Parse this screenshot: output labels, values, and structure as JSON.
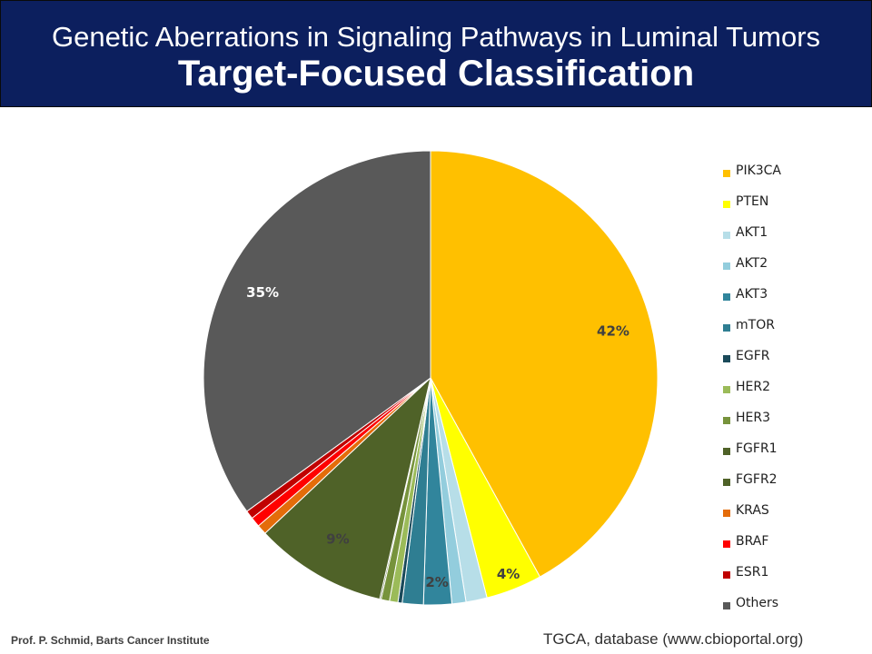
{
  "header": {
    "title": "Genetic Aberrations in Signaling Pathways in Luminal Tumors",
    "subtitle": "Target-Focused Classification"
  },
  "chart_data": {
    "type": "pie",
    "title": "",
    "start_angle_deg": 0,
    "direction": "clockwise",
    "slices": [
      {
        "label": "PIK3CA",
        "value": 42,
        "color": "#ffc000",
        "data_label": "42%"
      },
      {
        "label": "PTEN",
        "value": 4,
        "color": "#ffff00",
        "data_label": "4%"
      },
      {
        "label": "AKT1",
        "value": 1.5,
        "color": "#b7dee8",
        "data_label": ""
      },
      {
        "label": "AKT2",
        "value": 1,
        "color": "#93cddd",
        "data_label": ""
      },
      {
        "label": "AKT3",
        "value": 2,
        "color": "#31859c",
        "data_label": "2%"
      },
      {
        "label": "mTOR",
        "value": 1.5,
        "color": "#2f7e92",
        "data_label": ""
      },
      {
        "label": "EGFR",
        "value": 0.3,
        "color": "#1b4a5a",
        "data_label": ""
      },
      {
        "label": "HER2",
        "value": 0.6,
        "color": "#9bbb59",
        "data_label": ""
      },
      {
        "label": "HER3",
        "value": 0.6,
        "color": "#77933c",
        "data_label": ""
      },
      {
        "label": "FGFR1",
        "value": 0.1,
        "color": "#4f6228",
        "data_label": ""
      },
      {
        "label": "FGFR2",
        "value": 9.4,
        "color": "#4f6228",
        "data_label": "9%"
      },
      {
        "label": "KRAS",
        "value": 0.7,
        "color": "#e46c0a",
        "data_label": ""
      },
      {
        "label": "BRAF",
        "value": 0.7,
        "color": "#ff0000",
        "data_label": ""
      },
      {
        "label": "ESR1",
        "value": 0.6,
        "color": "#c00000",
        "data_label": ""
      },
      {
        "label": "Others",
        "value": 35,
        "color": "#595959",
        "data_label": "35%"
      }
    ]
  },
  "footer": {
    "left": "Prof. P. Schmid, Barts Cancer Institute",
    "right": "TGCA, database (www.cbioportal.org)"
  }
}
